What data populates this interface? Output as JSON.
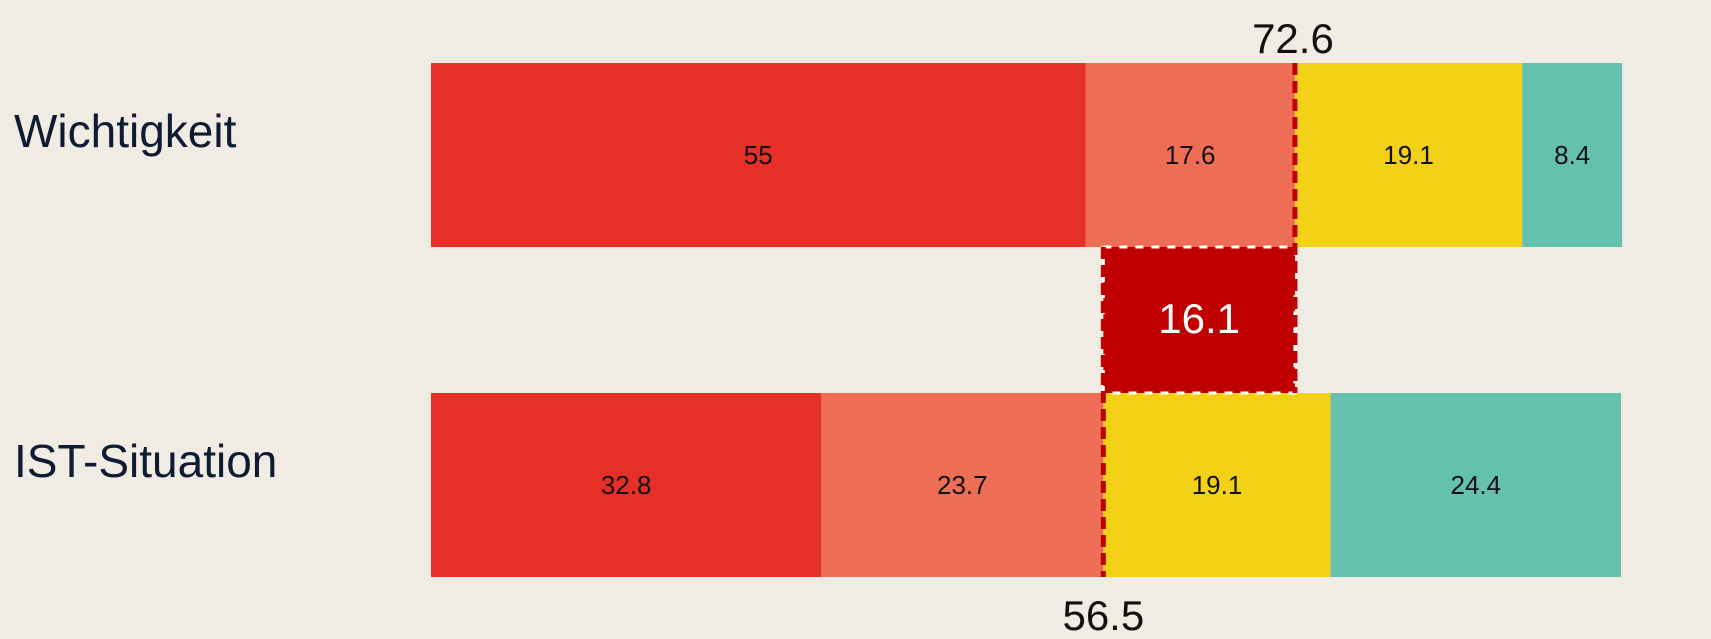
{
  "chart_data": {
    "type": "bar",
    "orientation": "horizontal",
    "stacked": true,
    "categories": [
      "Wichtigkeit",
      "IST-Situation"
    ],
    "series": [
      {
        "color": "#e63027",
        "values": [
          55,
          32.8
        ]
      },
      {
        "color": "#ee6d55",
        "values": [
          17.6,
          23.7
        ]
      },
      {
        "color": "#f3d116",
        "values": [
          19.1,
          19.1
        ]
      },
      {
        "color": "#65c1ae",
        "values": [
          8.4,
          24.4
        ]
      }
    ],
    "annotations": {
      "top_cumulative": 72.6,
      "bottom_cumulative": 56.5,
      "gap": 16.1,
      "gap_color": "#c00000",
      "line_color": "#c00000"
    },
    "xlim": [
      0,
      100
    ],
    "grid": false,
    "legend": "none"
  }
}
